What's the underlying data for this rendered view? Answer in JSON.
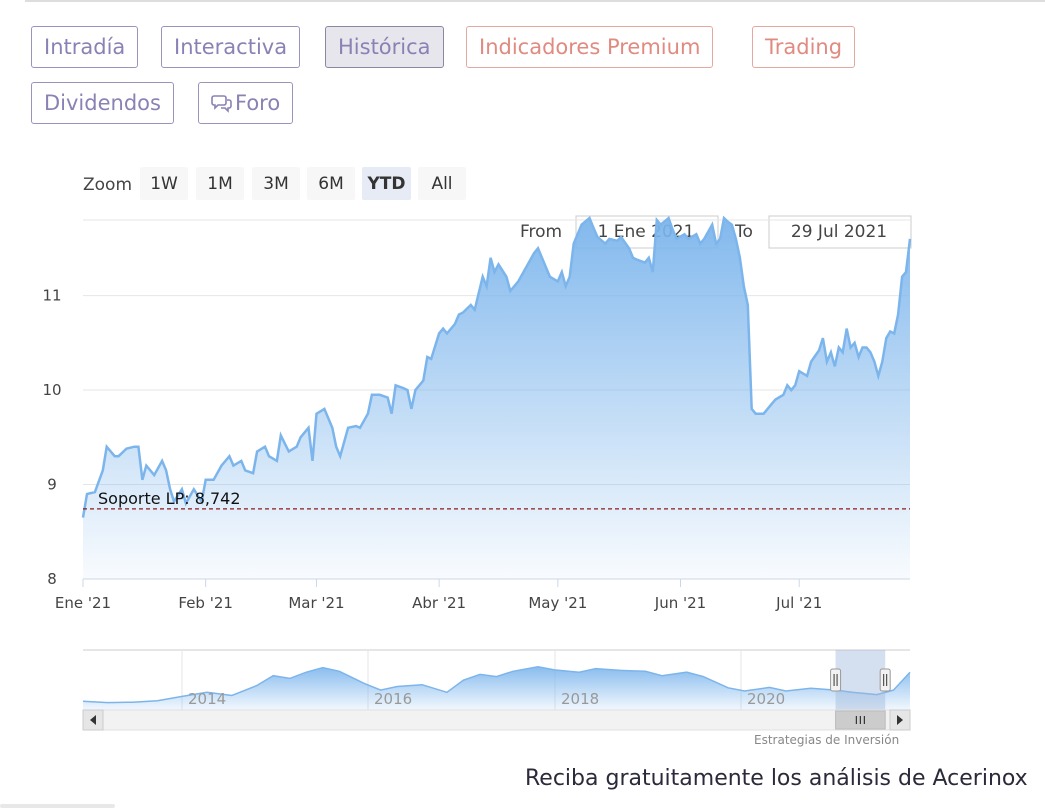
{
  "tabs": [
    {
      "label": "Intradía",
      "style": "purple"
    },
    {
      "label": "Interactiva",
      "style": "purple"
    },
    {
      "label": "Histórica",
      "style": "active"
    },
    {
      "label": "Indicadores Premium",
      "style": "red"
    },
    {
      "label": "Trading",
      "style": "red"
    },
    {
      "label": "Dividendos",
      "style": "purple"
    },
    {
      "label": "Foro",
      "style": "purple",
      "icon": "speech-bubbles-icon"
    }
  ],
  "zoom": {
    "label": "Zoom",
    "buttons": [
      "1W",
      "1M",
      "3M",
      "6M",
      "YTD",
      "All"
    ],
    "selected": "YTD"
  },
  "range": {
    "from_label": "From",
    "from_value": "1 Ene 2021",
    "to_label": "To",
    "to_value": "29 Jul 2021"
  },
  "credits": "Estrategias de Inversión",
  "promo": "Reciba gratuitamente los análisis de Acerinox",
  "colors": {
    "line": "#7cb5ec",
    "purple": "#8a82b4",
    "red": "#e08a80",
    "support": "#8b1a1a"
  },
  "chart_data": {
    "type": "area",
    "ylim": [
      8,
      11.8
    ],
    "y_ticks": [
      8,
      9,
      10,
      11
    ],
    "x_ticks": [
      {
        "label": "Ene '21",
        "day": 0
      },
      {
        "label": "Feb '21",
        "day": 31
      },
      {
        "label": "Mar '21",
        "day": 59
      },
      {
        "label": "Abr '21",
        "day": 90
      },
      {
        "label": "May '21",
        "day": 120
      },
      {
        "label": "Jun '21",
        "day": 151
      },
      {
        "label": "Jul '21",
        "day": 181
      }
    ],
    "x_range_days": [
      0,
      209
    ],
    "support_line": {
      "label": "Soporte LP: 8,742",
      "value": 8.742
    },
    "series": [
      {
        "points": [
          [
            0,
            8.65
          ],
          [
            1,
            8.9
          ],
          [
            3,
            8.92
          ],
          [
            5,
            9.15
          ],
          [
            6,
            9.4
          ],
          [
            8,
            9.3
          ],
          [
            9,
            9.3
          ],
          [
            11,
            9.38
          ],
          [
            13,
            9.4
          ],
          [
            14,
            9.4
          ],
          [
            15,
            9.05
          ],
          [
            16,
            9.2
          ],
          [
            18,
            9.1
          ],
          [
            20,
            9.25
          ],
          [
            21,
            9.15
          ],
          [
            22,
            8.95
          ],
          [
            23,
            8.82
          ],
          [
            25,
            8.95
          ],
          [
            26,
            8.8
          ],
          [
            28,
            8.95
          ],
          [
            30,
            8.82
          ],
          [
            31,
            9.05
          ],
          [
            33,
            9.05
          ],
          [
            35,
            9.2
          ],
          [
            37,
            9.3
          ],
          [
            38,
            9.2
          ],
          [
            40,
            9.25
          ],
          [
            41,
            9.15
          ],
          [
            43,
            9.12
          ],
          [
            44,
            9.35
          ],
          [
            46,
            9.4
          ],
          [
            47,
            9.3
          ],
          [
            49,
            9.25
          ],
          [
            50,
            9.52
          ],
          [
            52,
            9.35
          ],
          [
            54,
            9.4
          ],
          [
            55,
            9.5
          ],
          [
            57,
            9.6
          ],
          [
            58,
            9.25
          ],
          [
            59,
            9.75
          ],
          [
            61,
            9.8
          ],
          [
            63,
            9.6
          ],
          [
            64,
            9.4
          ],
          [
            65,
            9.3
          ],
          [
            67,
            9.6
          ],
          [
            69,
            9.62
          ],
          [
            70,
            9.6
          ],
          [
            72,
            9.75
          ],
          [
            73,
            9.95
          ],
          [
            75,
            9.95
          ],
          [
            77,
            9.92
          ],
          [
            78,
            9.75
          ],
          [
            79,
            10.05
          ],
          [
            81,
            10.02
          ],
          [
            82,
            10.0
          ],
          [
            83,
            9.8
          ],
          [
            84,
            10.0
          ],
          [
            86,
            10.1
          ],
          [
            87,
            10.35
          ],
          [
            88,
            10.33
          ],
          [
            90,
            10.6
          ],
          [
            91,
            10.65
          ],
          [
            92,
            10.6
          ],
          [
            94,
            10.7
          ],
          [
            95,
            10.8
          ],
          [
            96,
            10.82
          ],
          [
            98,
            10.9
          ],
          [
            99,
            10.85
          ],
          [
            101,
            11.2
          ],
          [
            102,
            11.1
          ],
          [
            103,
            11.4
          ],
          [
            104,
            11.25
          ],
          [
            105,
            11.33
          ],
          [
            107,
            11.2
          ],
          [
            108,
            11.05
          ],
          [
            110,
            11.15
          ],
          [
            112,
            11.3
          ],
          [
            114,
            11.45
          ],
          [
            115,
            11.5
          ],
          [
            116,
            11.4
          ],
          [
            118,
            11.2
          ],
          [
            120,
            11.15
          ],
          [
            121,
            11.25
          ],
          [
            122,
            11.1
          ],
          [
            123,
            11.2
          ],
          [
            124,
            11.55
          ],
          [
            126,
            11.75
          ],
          [
            128,
            11.82
          ],
          [
            129,
            11.72
          ],
          [
            130,
            11.62
          ],
          [
            132,
            11.55
          ],
          [
            133,
            11.6
          ],
          [
            135,
            11.58
          ],
          [
            136,
            11.62
          ],
          [
            138,
            11.5
          ],
          [
            139,
            11.4
          ],
          [
            140,
            11.38
          ],
          [
            142,
            11.35
          ],
          [
            143,
            11.4
          ],
          [
            144,
            11.25
          ],
          [
            145,
            11.8
          ],
          [
            146,
            11.75
          ],
          [
            148,
            11.82
          ],
          [
            149,
            11.7
          ],
          [
            150,
            11.6
          ],
          [
            152,
            11.65
          ],
          [
            153,
            11.6
          ],
          [
            155,
            11.65
          ],
          [
            156,
            11.55
          ],
          [
            157,
            11.6
          ],
          [
            159,
            11.75
          ],
          [
            160,
            11.55
          ],
          [
            161,
            11.6
          ],
          [
            162,
            11.82
          ],
          [
            163,
            11.78
          ],
          [
            164,
            11.75
          ],
          [
            165,
            11.6
          ],
          [
            166,
            11.4
          ],
          [
            167,
            11.1
          ],
          [
            168,
            10.9
          ],
          [
            169,
            9.8
          ],
          [
            170,
            9.75
          ],
          [
            172,
            9.75
          ],
          [
            174,
            9.85
          ],
          [
            175,
            9.9
          ],
          [
            177,
            9.95
          ],
          [
            178,
            10.05
          ],
          [
            179,
            10.0
          ],
          [
            180,
            10.05
          ],
          [
            181,
            10.2
          ],
          [
            183,
            10.15
          ],
          [
            184,
            10.3
          ],
          [
            186,
            10.42
          ],
          [
            187,
            10.55
          ],
          [
            188,
            10.3
          ],
          [
            189,
            10.4
          ],
          [
            190,
            10.25
          ],
          [
            191,
            10.45
          ],
          [
            192,
            10.4
          ],
          [
            193,
            10.65
          ],
          [
            194,
            10.45
          ],
          [
            195,
            10.5
          ],
          [
            196,
            10.35
          ],
          [
            197,
            10.45
          ],
          [
            198,
            10.45
          ],
          [
            199,
            10.4
          ],
          [
            200,
            10.3
          ],
          [
            201,
            10.15
          ],
          [
            202,
            10.3
          ],
          [
            203,
            10.55
          ],
          [
            204,
            10.62
          ],
          [
            205,
            10.6
          ],
          [
            206,
            10.8
          ],
          [
            207,
            11.2
          ],
          [
            208,
            11.25
          ],
          [
            209,
            11.6
          ]
        ]
      }
    ],
    "navigator": {
      "labels": [
        "2014",
        "2016",
        "2018",
        "2020"
      ],
      "points": [
        [
          0,
          0.15
        ],
        [
          3,
          0.12
        ],
        [
          6,
          0.13
        ],
        [
          9,
          0.16
        ],
        [
          12,
          0.26
        ],
        [
          15,
          0.35
        ],
        [
          18,
          0.28
        ],
        [
          21,
          0.5
        ],
        [
          23,
          0.72
        ],
        [
          25,
          0.66
        ],
        [
          27,
          0.8
        ],
        [
          29,
          0.9
        ],
        [
          31,
          0.82
        ],
        [
          34,
          0.55
        ],
        [
          36,
          0.4
        ],
        [
          38,
          0.48
        ],
        [
          41,
          0.52
        ],
        [
          44,
          0.35
        ],
        [
          46,
          0.62
        ],
        [
          48,
          0.75
        ],
        [
          50,
          0.7
        ],
        [
          52,
          0.82
        ],
        [
          55,
          0.92
        ],
        [
          57,
          0.85
        ],
        [
          60,
          0.8
        ],
        [
          62,
          0.88
        ],
        [
          65,
          0.84
        ],
        [
          68,
          0.82
        ],
        [
          70,
          0.72
        ],
        [
          73,
          0.8
        ],
        [
          75,
          0.7
        ],
        [
          78,
          0.45
        ],
        [
          80,
          0.38
        ],
        [
          83,
          0.46
        ],
        [
          85,
          0.38
        ],
        [
          88,
          0.44
        ],
        [
          91,
          0.4
        ],
        [
          93,
          0.35
        ],
        [
          96,
          0.3
        ],
        [
          98,
          0.4
        ],
        [
          100,
          0.8
        ]
      ],
      "selected_fraction": [
        0.91,
        0.97
      ]
    }
  }
}
